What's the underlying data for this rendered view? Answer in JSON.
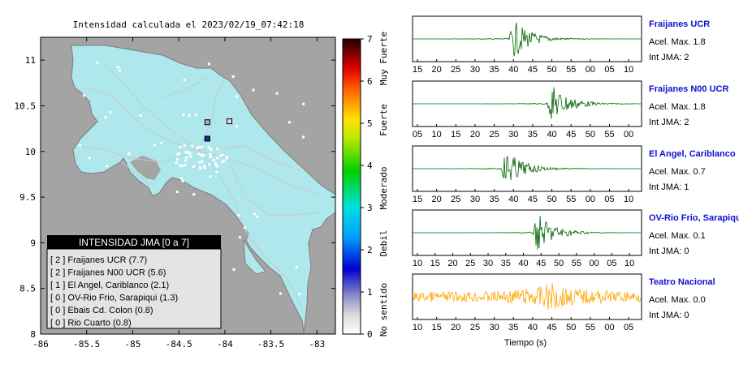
{
  "title": "Intensidad calculada el 2023/02/19_07:42:18",
  "map": {
    "xticks": [
      "-86",
      "-85.5",
      "-85",
      "-84.5",
      "-84",
      "-83.5",
      "-83"
    ],
    "yticks": [
      "11",
      "10.5",
      "10",
      "9.5",
      "9",
      "8.5",
      "8"
    ],
    "xlim": [
      -86,
      -82.8
    ],
    "ylim": [
      8,
      11.25
    ]
  },
  "colorbar": {
    "ticks": [
      "0",
      "1",
      "2",
      "3",
      "4",
      "5",
      "6",
      "7"
    ],
    "categories": [
      "No sentido",
      "Debil",
      "Moderado",
      "Fuerte",
      "Muy Fuerte"
    ]
  },
  "legend": {
    "title": "INTENSIDAD JMA [0 a 7]",
    "items": [
      "[ 2 ] Fraijanes UCR (7.7)",
      "[ 2 ] Fraijanes N00 UCR (5.6)",
      "[ 1 ] El Angel, Cariblanco (2.1)",
      "[ 0 ] OV-Rio Frio, Sarapiqui (1.3)",
      "[ 0 ] Ebais Cd. Colon (0.8)",
      "[ 0 ] Rio Cuarto (0.8)"
    ]
  },
  "traces": [
    {
      "name": "Fraijanes UCR",
      "acel": "Acel. Max. 1.8",
      "jma": "Int JMA: 2",
      "color": "#006400",
      "ticks": [
        "15",
        "20",
        "25",
        "30",
        "35",
        "40",
        "45",
        "50",
        "55",
        "00",
        "05",
        "10"
      ]
    },
    {
      "name": "Fraijanes N00 UCR",
      "acel": "Acel. Max. 1.8",
      "jma": "Int JMA: 2",
      "color": "#006400",
      "ticks": [
        "05",
        "10",
        "15",
        "20",
        "25",
        "30",
        "35",
        "40",
        "45",
        "50",
        "55",
        "00"
      ]
    },
    {
      "name": "El Angel, Cariblanco",
      "acel": "Acel. Max. 0.7",
      "jma": "Int JMA: 1",
      "color": "#006400",
      "ticks": [
        "15",
        "20",
        "25",
        "30",
        "35",
        "40",
        "45",
        "50",
        "55",
        "00",
        "05",
        "10"
      ]
    },
    {
      "name": "OV-Rio Frio, Sarapiqui",
      "acel": "Acel. Max. 0.1",
      "jma": "Int JMA: 0",
      "color": "#006400",
      "ticks": [
        "10",
        "15",
        "20",
        "25",
        "30",
        "35",
        "40",
        "45",
        "50",
        "55",
        "00",
        "05",
        "10"
      ]
    },
    {
      "name": "Teatro Nacional",
      "acel": "Acel. Max. 0.0",
      "jma": "Int JMA: 0",
      "color": "#FFA500",
      "ticks": [
        "10",
        "15",
        "20",
        "25",
        "30",
        "35",
        "40",
        "45",
        "50",
        "55",
        "00",
        "05"
      ]
    }
  ],
  "xlabel_traces": "Tiempo (s)",
  "chart_data": [
    {
      "type": "scatter",
      "title": "Intensidad calculada el 2023/02/19_07:42:18",
      "xlim": [
        -86,
        -82.8
      ],
      "ylim": [
        8,
        11.25
      ],
      "series": [
        {
          "name": "Fraijanes UCR",
          "x": [
            -84.19
          ],
          "y": [
            10.14
          ],
          "value": 2
        },
        {
          "name": "Fraijanes N00 UCR",
          "x": [
            -84.19
          ],
          "y": [
            10.14
          ],
          "value": 2
        },
        {
          "name": "El Angel, Cariblanco",
          "x": [
            -84.19
          ],
          "y": [
            10.32
          ],
          "value": 1
        },
        {
          "name": "OV-Rio Frio, Sarapiqui",
          "x": [
            -83.95
          ],
          "y": [
            10.33
          ],
          "value": 0
        }
      ]
    },
    {
      "type": "line",
      "xlabel": "Tiempo (s)",
      "series": [
        {
          "name": "Fraijanes UCR",
          "peak_x": 40,
          "acel_max": 1.8,
          "int_jma": 2
        },
        {
          "name": "Fraijanes N00 UCR",
          "peak_x": 40,
          "acel_max": 1.8,
          "int_jma": 2
        },
        {
          "name": "El Angel, Cariblanco",
          "peak_x": 38,
          "acel_max": 0.7,
          "int_jma": 1
        },
        {
          "name": "OV-Rio Frio, Sarapiqui",
          "peak_x": 44,
          "acel_max": 0.1,
          "int_jma": 0
        },
        {
          "name": "Teatro Nacional",
          "peak_x": 45,
          "acel_max": 0.0,
          "int_jma": 0
        }
      ]
    }
  ]
}
